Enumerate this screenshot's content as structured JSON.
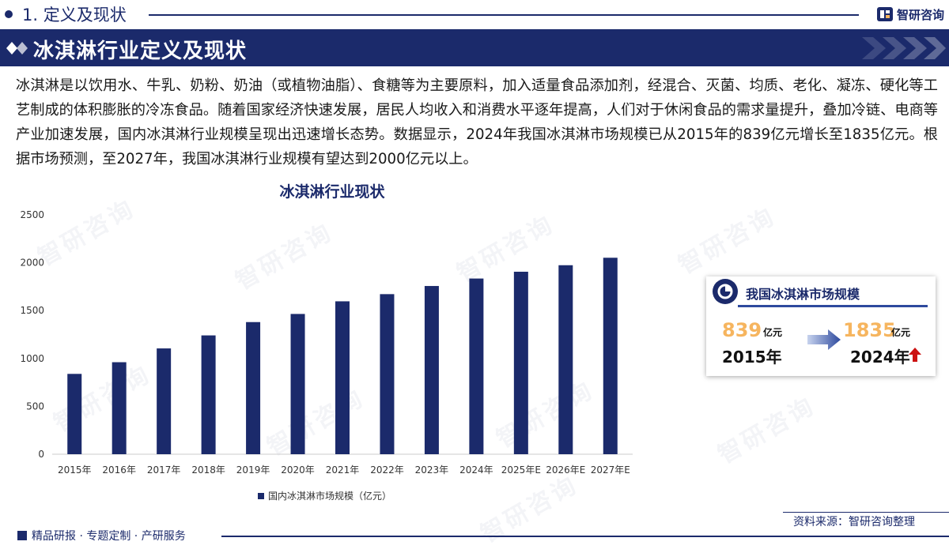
{
  "header": {
    "section_title": "1. 定义及现状",
    "brand_name": "智研咨询"
  },
  "banner": {
    "title": "冰淇淋行业定义及现状"
  },
  "intro": "冰淇淋是以饮用水、牛乳、奶粉、奶油（或植物油脂）、食糖等为主要原料，加入适量食品添加剂，经混合、灭菌、均质、老化、凝冻、硬化等工艺制成的体积膨胀的冷冻食品。随着国家经济快速发展，居民人均收入和消费水平逐年提高，人们对于休闲食品的需求量提升，叠加冷链、电商等产业加速发展，国内冰淇淋行业规模呈现出迅速增长态势。数据显示，2024年我国冰淇淋市场规模已从2015年的839亿元增长至1835亿元。根据市场预测，至2027年，我国冰淇淋行业规模有望达到2000亿元以上。",
  "chart_data": {
    "type": "bar",
    "title": "冰淇淋行业现状",
    "categories": [
      "2015年",
      "2016年",
      "2017年",
      "2018年",
      "2019年",
      "2020年",
      "2021年",
      "2022年",
      "2023年",
      "2024年",
      "2025年E",
      "2026年E",
      "2027年E"
    ],
    "series": [
      {
        "name": "国内冰淇淋市场规模（亿元）",
        "values": [
          839,
          961,
          1105,
          1241,
          1380,
          1465,
          1597,
          1672,
          1757,
          1835,
          1906,
          1974,
          2052
        ]
      }
    ],
    "ylim": [
      0,
      2500
    ],
    "yticks": [
      0,
      500,
      1000,
      1500,
      2000,
      2500
    ],
    "grid": false,
    "legend_position": "bottom",
    "bar_color": "#1b2a6b"
  },
  "card": {
    "title": "我国冰淇淋市场规模",
    "from_value": "839",
    "from_unit": "亿元",
    "from_year": "2015年",
    "to_value": "1835",
    "to_unit": "亿元",
    "to_year": "2024年",
    "value_color": "#f6b55f",
    "arrow_icon": "right-arrow-icon",
    "trend_icon": "up-arrow-icon",
    "trend_color": "#cc1111"
  },
  "source": "资料来源：智研咨询整理",
  "footer": {
    "text": "精品研报 · 专题定制 · 产研服务"
  },
  "watermark": "智研咨询",
  "colors": {
    "primary": "#1b2a6b",
    "accent": "#f6b55f"
  }
}
